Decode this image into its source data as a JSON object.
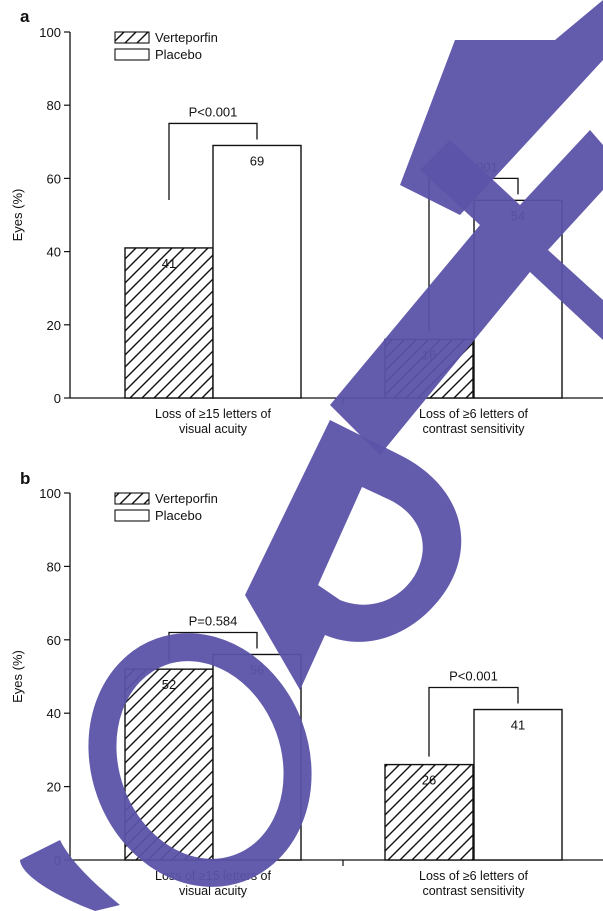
{
  "watermark": {
    "text": "COPY",
    "color": "#5b53a8"
  },
  "legend": {
    "series": [
      {
        "name": "Verteporfin",
        "pattern": "hatch"
      },
      {
        "name": "Placebo",
        "pattern": "plain"
      }
    ],
    "placement": "top-left"
  },
  "chart_data": [
    {
      "panel_label": "a",
      "type": "bar",
      "title": "",
      "ylabel": "Eyes (%)",
      "xlabel": "",
      "ylim": [
        0,
        100
      ],
      "yticks": [
        0,
        20,
        40,
        60,
        80,
        100
      ],
      "categories": [
        [
          "Loss of ≥15 letters of",
          "visual acuity"
        ],
        [
          "Loss of ≥6 letters of",
          "contrast sensitivity"
        ]
      ],
      "series": [
        {
          "name": "Verteporfin",
          "values": [
            41,
            16
          ]
        },
        {
          "name": "Placebo",
          "values": [
            69,
            54
          ]
        }
      ],
      "data_labels": [
        [
          "41",
          "69"
        ],
        [
          "16",
          "54"
        ]
      ],
      "significance": [
        "P<0.001",
        "P<0.001"
      ],
      "grid": false
    },
    {
      "panel_label": "b",
      "type": "bar",
      "title": "",
      "ylabel": "Eyes (%)",
      "xlabel": "",
      "ylim": [
        0,
        100
      ],
      "yticks": [
        0,
        20,
        40,
        60,
        80,
        100
      ],
      "categories": [
        [
          "Loss of ≥15 letters of",
          "visual acuity"
        ],
        [
          "Loss of ≥6 letters of",
          "contrast sensitivity"
        ]
      ],
      "series": [
        {
          "name": "Verteporfin",
          "values": [
            52,
            26
          ]
        },
        {
          "name": "Placebo",
          "values": [
            56,
            41
          ]
        }
      ],
      "data_labels": [
        [
          "52",
          "56"
        ],
        [
          "26",
          "41"
        ]
      ],
      "significance": [
        "P=0.584",
        "P<0.001"
      ],
      "grid": false
    }
  ]
}
